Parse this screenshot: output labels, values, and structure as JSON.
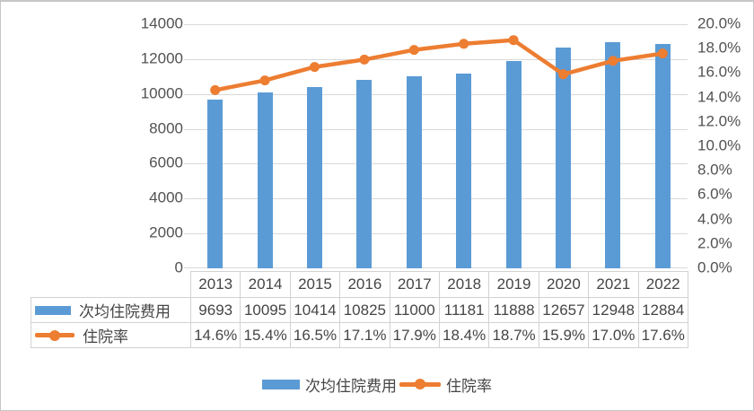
{
  "chart_data": {
    "type": "bar+line",
    "title": "",
    "categories": [
      "2013",
      "2014",
      "2015",
      "2016",
      "2017",
      "2018",
      "2019",
      "2020",
      "2021",
      "2022"
    ],
    "series": [
      {
        "name": "次均住院费用",
        "type": "bar",
        "axis": "left",
        "color": "#5B9BD5",
        "values": [
          9693,
          10095,
          10414,
          10825,
          11000,
          11181,
          11888,
          12657,
          12948,
          12884
        ],
        "display": [
          "9693",
          "10095",
          "10414",
          "10825",
          "11000",
          "11181",
          "11888",
          "12657",
          "12948",
          "12884"
        ]
      },
      {
        "name": "住院率",
        "type": "line",
        "axis": "right",
        "color": "#ED7D31",
        "values": [
          14.6,
          15.4,
          16.5,
          17.1,
          17.9,
          18.4,
          18.7,
          15.9,
          17.0,
          17.6
        ],
        "display": [
          "14.6%",
          "15.4%",
          "16.5%",
          "17.1%",
          "17.9%",
          "18.4%",
          "18.7%",
          "15.9%",
          "17.0%",
          "17.6%"
        ]
      }
    ],
    "left_axis": {
      "min": 0,
      "max": 14000,
      "step": 2000,
      "ticks": [
        "0",
        "2000",
        "4000",
        "6000",
        "8000",
        "10000",
        "12000",
        "14000"
      ]
    },
    "right_axis": {
      "min": 0,
      "max": 20,
      "step": 2,
      "ticks": [
        "0.0%",
        "2.0%",
        "4.0%",
        "6.0%",
        "8.0%",
        "10.0%",
        "12.0%",
        "14.0%",
        "16.0%",
        "18.0%",
        "20.0%"
      ]
    },
    "grid": true,
    "legend_position": "bottom",
    "data_table_shown": true
  },
  "colors": {
    "bar": "#5B9BD5",
    "line": "#ED7D31",
    "gridline": "#d9d9d9",
    "axis_text": "#525252",
    "table_text": "#454545",
    "table_border": "#d2d2d2",
    "frame_border": "#c6c6c6",
    "background": "#ffffff"
  }
}
